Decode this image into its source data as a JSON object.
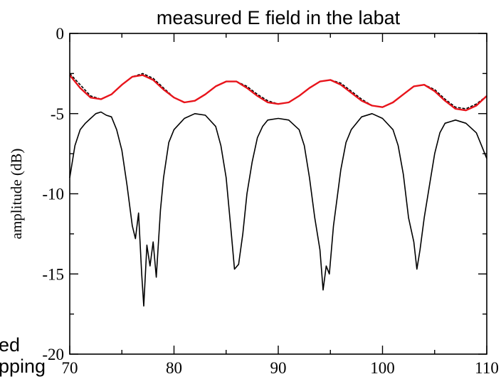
{
  "chart_data": {
    "type": "line",
    "title": "measured E field in the labat",
    "xlabel": "",
    "ylabel": "amplitude (dB)",
    "xlim": [
      70,
      110
    ],
    "ylim": [
      -20,
      0
    ],
    "x_ticks": [
      70,
      80,
      90,
      100,
      110
    ],
    "y_ticks": [
      0,
      -5,
      -10,
      -15,
      -20
    ],
    "x_tick_labels": [
      "70",
      "80",
      "90",
      "100",
      "110"
    ],
    "y_tick_labels": [
      "0",
      "-5",
      "-10",
      "-15",
      "-20"
    ],
    "grid": false,
    "series": [
      {
        "color": "#000000",
        "style": "solid",
        "x": [
          70,
          70.5,
          71,
          71.5,
          72,
          72.5,
          73,
          73.5,
          74,
          74.5,
          75,
          75.5,
          76,
          76.3,
          76.6,
          76.9,
          77.1,
          77.4,
          77.7,
          78,
          78.3,
          78.7,
          79,
          79.5,
          80,
          81,
          82,
          83,
          84,
          84.5,
          85,
          85.5,
          85.8,
          86.2,
          86.6,
          87,
          87.5,
          88,
          88.5,
          89,
          90,
          91,
          92,
          92.5,
          93,
          93.5,
          94,
          94.3,
          94.6,
          94.9,
          95.3,
          95.7,
          96,
          96.5,
          97,
          98,
          99,
          100,
          101,
          101.5,
          102,
          102.5,
          103,
          103.3,
          103.6,
          104,
          104.5,
          105,
          105.5,
          106,
          107,
          108,
          109,
          109.5,
          110
        ],
        "y": [
          -9.0,
          -7.0,
          -6.0,
          -5.6,
          -5.3,
          -5.0,
          -4.9,
          -5.1,
          -5.2,
          -6.0,
          -7.3,
          -9.5,
          -12.0,
          -12.8,
          -11.2,
          -15.0,
          -17.0,
          -13.2,
          -14.5,
          -13.0,
          -15.2,
          -11.0,
          -9.0,
          -6.8,
          -6.0,
          -5.3,
          -5.0,
          -5.1,
          -5.8,
          -7.0,
          -9.0,
          -12.5,
          -14.7,
          -14.4,
          -12.5,
          -10.0,
          -8.0,
          -6.5,
          -5.8,
          -5.4,
          -5.3,
          -5.4,
          -6.0,
          -7.0,
          -9.0,
          -11.5,
          -13.5,
          -16.0,
          -14.5,
          -15.0,
          -12.0,
          -10.0,
          -8.5,
          -6.8,
          -6.0,
          -5.2,
          -5.0,
          -5.3,
          -6.0,
          -7.0,
          -8.8,
          -11.5,
          -13.0,
          -14.7,
          -13.5,
          -11.5,
          -9.5,
          -7.5,
          -6.2,
          -5.6,
          -5.4,
          -5.6,
          -6.2,
          -7.0,
          -7.8
        ]
      },
      {
        "color": "#000000",
        "style": "dashed",
        "x": [
          70,
          71,
          72,
          73,
          74,
          75,
          76,
          77,
          78,
          79,
          80,
          81,
          82,
          83,
          84,
          85,
          86,
          87,
          88,
          89,
          90,
          91,
          92,
          93,
          94,
          95,
          96,
          97,
          98,
          99,
          100,
          101,
          102,
          103,
          104,
          105,
          106,
          107,
          108,
          109,
          110
        ],
        "y": [
          -2.5,
          -3.2,
          -3.9,
          -4.1,
          -3.8,
          -3.2,
          -2.7,
          -2.5,
          -2.8,
          -3.4,
          -4.0,
          -4.3,
          -4.2,
          -3.8,
          -3.3,
          -3.0,
          -3.0,
          -3.3,
          -3.8,
          -4.2,
          -4.4,
          -4.3,
          -3.9,
          -3.4,
          -3.0,
          -2.9,
          -3.1,
          -3.6,
          -4.1,
          -4.5,
          -4.6,
          -4.3,
          -3.8,
          -3.3,
          -3.2,
          -3.5,
          -4.1,
          -4.6,
          -4.7,
          -4.4,
          -3.9
        ]
      },
      {
        "color": "#e8141b",
        "style": "solid",
        "x": [
          70,
          71,
          72,
          73,
          74,
          75,
          76,
          77,
          78,
          79,
          80,
          81,
          82,
          83,
          84,
          85,
          86,
          87,
          88,
          89,
          90,
          91,
          92,
          93,
          94,
          95,
          96,
          97,
          98,
          99,
          100,
          101,
          102,
          103,
          104,
          105,
          106,
          107,
          108,
          109,
          110
        ],
        "y": [
          -2.6,
          -3.4,
          -4.0,
          -4.1,
          -3.8,
          -3.2,
          -2.7,
          -2.6,
          -2.9,
          -3.5,
          -4.0,
          -4.3,
          -4.2,
          -3.8,
          -3.3,
          -3.0,
          -3.0,
          -3.4,
          -3.9,
          -4.3,
          -4.4,
          -4.3,
          -3.9,
          -3.4,
          -3.0,
          -2.9,
          -3.2,
          -3.7,
          -4.2,
          -4.5,
          -4.6,
          -4.3,
          -3.8,
          -3.3,
          -3.2,
          -3.6,
          -4.2,
          -4.7,
          -4.8,
          -4.5,
          -3.9
        ]
      }
    ]
  },
  "overlay_text": {
    "line1": "ed",
    "line2": "pping"
  }
}
